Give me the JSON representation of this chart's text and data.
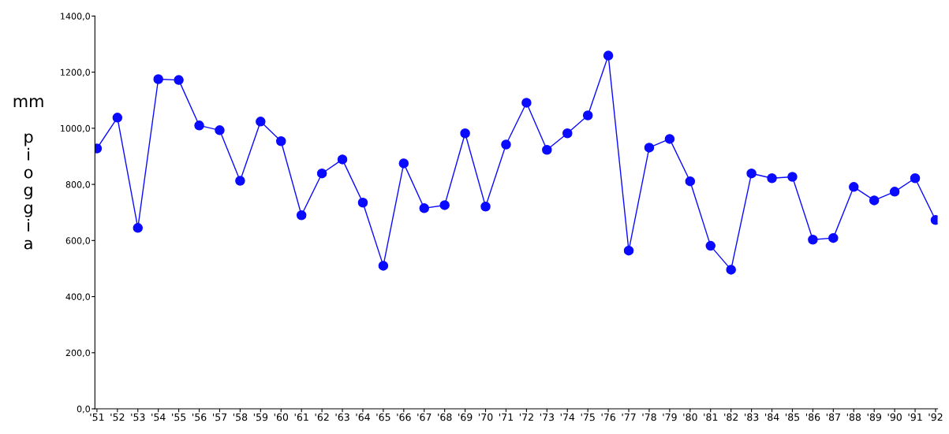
{
  "chart_data": {
    "type": "line",
    "ylabel": "mm pioggia",
    "categories": [
      "'51",
      "'52",
      "'53",
      "'54",
      "'55",
      "'56",
      "'57",
      "'58",
      "'59",
      "'60",
      "'61",
      "'62",
      "'63",
      "'64",
      "'65",
      "'66",
      "'67",
      "'68",
      "'69",
      "'70",
      "'71",
      "'72",
      "'73",
      "'74",
      "'75",
      "'76",
      "'77",
      "'78",
      "'79",
      "'80",
      "'81",
      "'82",
      "'83",
      "'84",
      "'85",
      "'86",
      "'87",
      "'88",
      "'89",
      "'90",
      "'91",
      "'92"
    ],
    "series": [
      {
        "color": "#0a0aff",
        "values": [
          928,
          1038,
          645,
          1175,
          1172,
          1010,
          993,
          813,
          1024,
          954,
          690,
          839,
          889,
          735,
          510,
          875,
          715,
          726,
          982,
          721,
          942,
          1091,
          923,
          982,
          1046,
          1259,
          564,
          931,
          962,
          811,
          581,
          496,
          839,
          822,
          827,
          603,
          609,
          791,
          743,
          774,
          822,
          673
        ]
      }
    ],
    "ylim": [
      0,
      1400
    ],
    "yticks": [
      {
        "value": 0,
        "label": "0,0"
      },
      {
        "value": 200,
        "label": "200,0"
      },
      {
        "value": 400,
        "label": "400,0"
      },
      {
        "value": 600,
        "label": "600,0"
      },
      {
        "value": 800,
        "label": "800,0"
      },
      {
        "value": 1000,
        "label": "1000,0"
      },
      {
        "value": 1200,
        "label": "1200,0"
      },
      {
        "value": 1400,
        "label": "1400,0"
      }
    ],
    "marker": "circle",
    "line_style": "solid",
    "grid": false,
    "legend": false
  }
}
